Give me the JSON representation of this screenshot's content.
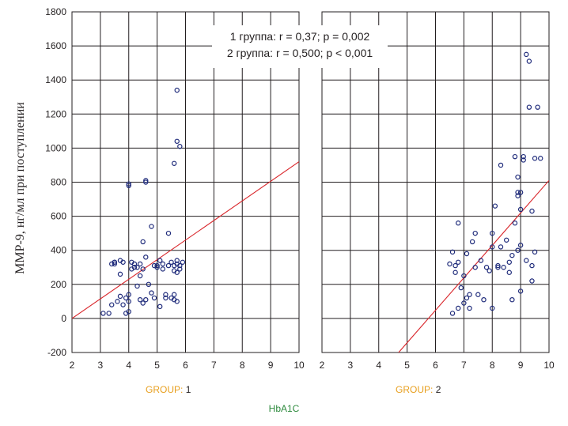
{
  "colors": {
    "points": "#1e2a7a",
    "fit_line": "#d9262b",
    "grid": "#231f20",
    "group_key": "#e8a020",
    "x_title": "#2e8b3e"
  },
  "legend": {
    "line1": "1 группа: r = 0,37; p = 0,002",
    "line2": "2 группа: r = 0,500; p < 0,001"
  },
  "y_axis_title": "ММР-9, нг/мл при поступлении",
  "x_axis_title": "HbA1C",
  "chart_data": [
    {
      "type": "scatter",
      "panel_key": "GROUP:",
      "panel_value": "1",
      "xlim": [
        2,
        10
      ],
      "ylim": [
        -200,
        1800
      ],
      "x_ticks": [
        "2",
        "3",
        "4",
        "5",
        "6",
        "7",
        "8",
        "9",
        "10"
      ],
      "y_ticks": [
        "-200",
        "0",
        "200",
        "400",
        "600",
        "800",
        "1000",
        "1200",
        "1400",
        "1600",
        "1800"
      ],
      "grid": true,
      "fit_line": {
        "x": [
          2,
          10
        ],
        "y": [
          0,
          920
        ]
      },
      "x": [
        3.1,
        3.3,
        3.4,
        3.5,
        3.5,
        3.6,
        3.7,
        3.7,
        3.8,
        3.8,
        3.9,
        3.9,
        4.0,
        4.0,
        4.0,
        4.0,
        4.1,
        4.1,
        4.2,
        4.2,
        4.3,
        4.3,
        4.4,
        4.4,
        4.4,
        4.5,
        4.5,
        4.5,
        4.6,
        4.6,
        4.6,
        4.7,
        4.8,
        4.8,
        4.9,
        4.9,
        5.0,
        5.0,
        5.1,
        5.1,
        5.2,
        5.2,
        5.3,
        5.3,
        5.4,
        5.4,
        5.5,
        5.5,
        5.6,
        5.6,
        5.6,
        5.6,
        5.7,
        5.7,
        5.7,
        5.7,
        5.8,
        5.8,
        5.9,
        3.4,
        3.5,
        3.7,
        4.0,
        4.6,
        5.6,
        5.7,
        5.8,
        5.7
      ],
      "y": [
        30,
        30,
        80,
        320,
        330,
        100,
        340,
        260,
        80,
        330,
        120,
        30,
        100,
        140,
        40,
        790,
        330,
        290,
        320,
        300,
        300,
        190,
        110,
        320,
        250,
        90,
        450,
        290,
        110,
        360,
        810,
        200,
        540,
        150,
        120,
        310,
        310,
        300,
        70,
        340,
        320,
        290,
        140,
        120,
        310,
        500,
        120,
        330,
        310,
        110,
        280,
        140,
        340,
        320,
        100,
        270,
        310,
        290,
        330,
        320,
        330,
        130,
        780,
        800,
        910,
        1340,
        1010,
        1040
      ]
    },
    {
      "type": "scatter",
      "panel_key": "GROUP:",
      "panel_value": "2",
      "xlim": [
        2,
        10
      ],
      "ylim": [
        -200,
        1800
      ],
      "x_ticks": [
        "2",
        "3",
        "4",
        "5",
        "6",
        "7",
        "8",
        "9",
        "10"
      ],
      "y_ticks": [
        "-200",
        "0",
        "200",
        "400",
        "600",
        "800",
        "1000",
        "1200",
        "1400",
        "1600",
        "1800"
      ],
      "grid": true,
      "fit_line": {
        "x": [
          4.7,
          10
        ],
        "y": [
          -200,
          810
        ]
      },
      "x": [
        6.5,
        6.6,
        6.6,
        6.7,
        6.7,
        6.8,
        6.8,
        6.8,
        6.9,
        7.0,
        7.0,
        7.1,
        7.1,
        7.2,
        7.2,
        7.3,
        7.4,
        7.4,
        7.5,
        7.6,
        7.7,
        7.8,
        7.9,
        8.0,
        8.0,
        8.0,
        8.1,
        8.2,
        8.2,
        8.3,
        8.3,
        8.4,
        8.5,
        8.6,
        8.6,
        8.7,
        8.7,
        8.8,
        8.8,
        8.9,
        8.9,
        8.9,
        8.9,
        9.0,
        9.0,
        9.0,
        9.0,
        9.1,
        9.1,
        9.2,
        9.2,
        9.3,
        9.3,
        9.4,
        9.4,
        9.4,
        9.5,
        9.5,
        9.6,
        9.7
      ],
      "y": [
        320,
        30,
        390,
        270,
        310,
        60,
        330,
        560,
        180,
        90,
        250,
        120,
        380,
        60,
        140,
        450,
        300,
        500,
        140,
        340,
        110,
        300,
        280,
        420,
        500,
        60,
        660,
        310,
        300,
        420,
        900,
        300,
        460,
        330,
        270,
        370,
        110,
        560,
        950,
        400,
        720,
        830,
        740,
        430,
        160,
        740,
        640,
        950,
        930,
        1550,
        340,
        1510,
        1240,
        630,
        310,
        220,
        940,
        390,
        1240,
        940
      ]
    }
  ]
}
